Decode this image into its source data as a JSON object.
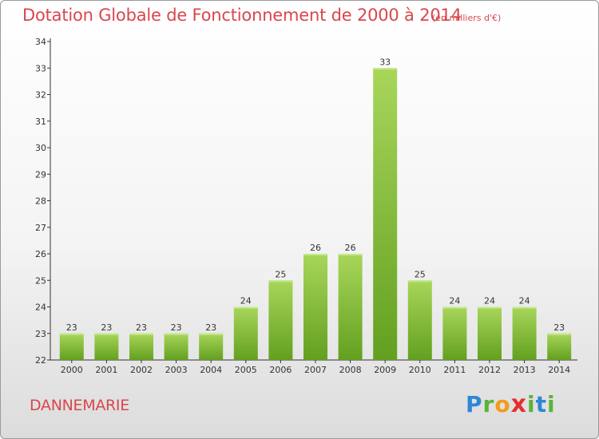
{
  "header": {
    "title": "Dotation Globale de Fonctionnement de 2000 à 2014",
    "unit_note": "(en milliers d'€)"
  },
  "footer": {
    "place": "DANNEMARIE",
    "logo_letters": [
      "P",
      "r",
      "o",
      "x",
      "i",
      "t",
      "i"
    ],
    "logo_colors": [
      "#2e86d6",
      "#5ab33a",
      "#f29a1c",
      "#e2312b",
      "#5ab33a",
      "#2e86d6",
      "#5ab33a"
    ]
  },
  "colors": {
    "title": "#d8474d",
    "bar_light": "#a8d65a",
    "bar_dark": "#63a01f",
    "axis": "#333333"
  },
  "chart_data": {
    "type": "bar",
    "title": "Dotation Globale de Fonctionnement de 2000 à 2014",
    "subtitle": "(en milliers d'€)",
    "categories": [
      "2000",
      "2001",
      "2002",
      "2003",
      "2004",
      "2005",
      "2006",
      "2007",
      "2008",
      "2009",
      "2010",
      "2011",
      "2012",
      "2013",
      "2014"
    ],
    "values": [
      23,
      23,
      23,
      23,
      23,
      24,
      25,
      26,
      26,
      33,
      25,
      24,
      24,
      24,
      23
    ],
    "data_labels": [
      "23",
      "23",
      "23",
      "23",
      "23",
      "24",
      "25",
      "26",
      "26",
      "33",
      "25",
      "24",
      "24",
      "24",
      "23"
    ],
    "ylim": [
      22,
      34
    ],
    "yticks": [
      "22",
      "23",
      "24",
      "25",
      "26",
      "27",
      "28",
      "29",
      "30",
      "31",
      "32",
      "33",
      "34"
    ],
    "grid": false,
    "legend": "none"
  }
}
